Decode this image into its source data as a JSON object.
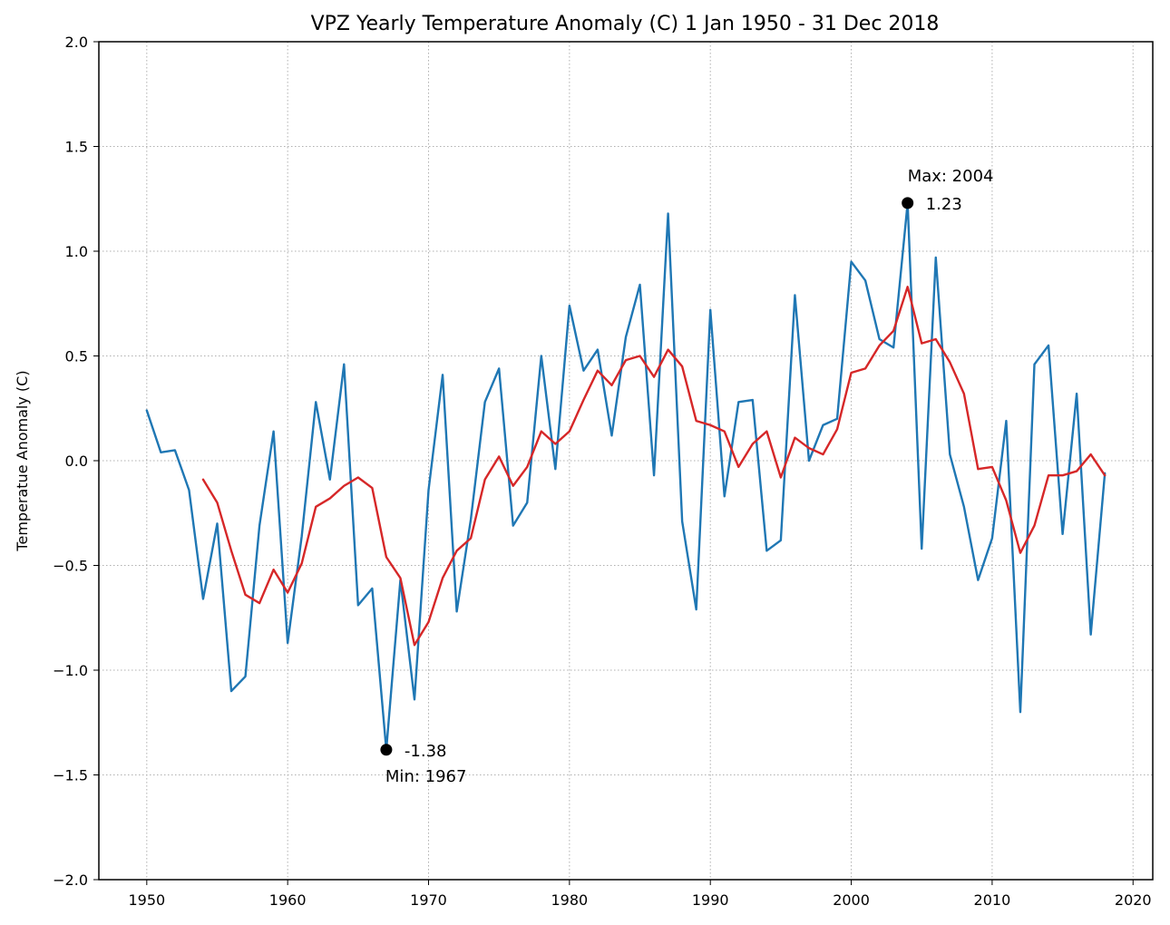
{
  "chart_data": {
    "type": "line",
    "title": "VPZ Yearly Temperature Anomaly (C) 1 Jan 1950 - 31 Dec 2018",
    "xlabel": "",
    "ylabel": "Temperatue Anomaly (C)",
    "xlim": [
      1946.6,
      2021.4
    ],
    "ylim": [
      -2.0,
      2.0
    ],
    "xticks": [
      1950,
      1960,
      1970,
      1980,
      1990,
      2000,
      2010,
      2020
    ],
    "yticks": [
      -2.0,
      -1.5,
      -1.0,
      -0.5,
      0.0,
      0.5,
      1.0,
      1.5,
      2.0
    ],
    "ytick_labels": [
      "−2.0",
      "−1.5",
      "−1.0",
      "−0.5",
      "0.0",
      "0.5",
      "1.0",
      "1.5",
      "2.0"
    ],
    "grid": true,
    "series": [
      {
        "color": "#1f77b4",
        "x": [
          1950,
          1951,
          1952,
          1953,
          1954,
          1955,
          1956,
          1957,
          1958,
          1959,
          1960,
          1961,
          1962,
          1963,
          1964,
          1965,
          1966,
          1967,
          1968,
          1969,
          1970,
          1971,
          1972,
          1973,
          1974,
          1975,
          1976,
          1977,
          1978,
          1979,
          1980,
          1981,
          1982,
          1983,
          1984,
          1985,
          1986,
          1987,
          1988,
          1989,
          1990,
          1991,
          1992,
          1993,
          1994,
          1995,
          1996,
          1997,
          1998,
          1999,
          2000,
          2001,
          2002,
          2003,
          2004,
          2005,
          2006,
          2007,
          2008,
          2009,
          2010,
          2011,
          2012,
          2013,
          2014,
          2015,
          2016,
          2017,
          2018
        ],
        "y": [
          0.24,
          0.04,
          0.05,
          -0.14,
          -0.66,
          -0.3,
          -1.1,
          -1.03,
          -0.31,
          0.14,
          -0.87,
          -0.36,
          0.28,
          -0.09,
          0.46,
          -0.69,
          -0.61,
          -1.38,
          -0.57,
          -1.14,
          -0.14,
          0.41,
          -0.72,
          -0.28,
          0.28,
          0.44,
          -0.31,
          -0.2,
          0.5,
          -0.04,
          0.74,
          0.43,
          0.53,
          0.12,
          0.59,
          0.84,
          -0.07,
          1.18,
          -0.29,
          -0.71,
          0.72,
          -0.17,
          0.28,
          0.29,
          -0.43,
          -0.38,
          0.79,
          0.0,
          0.17,
          0.2,
          0.95,
          0.86,
          0.58,
          0.54,
          1.23,
          -0.42,
          0.97,
          0.03,
          -0.22,
          -0.57,
          -0.37,
          0.19,
          -1.2,
          0.46,
          0.55,
          -0.35,
          0.32,
          -0.83,
          -0.06
        ]
      },
      {
        "color": "#d62728",
        "x": [
          1954,
          1955,
          1956,
          1957,
          1958,
          1959,
          1960,
          1961,
          1962,
          1963,
          1964,
          1965,
          1966,
          1967,
          1968,
          1969,
          1970,
          1971,
          1972,
          1973,
          1974,
          1975,
          1976,
          1977,
          1978,
          1979,
          1980,
          1981,
          1982,
          1983,
          1984,
          1985,
          1986,
          1987,
          1988,
          1989,
          1990,
          1991,
          1992,
          1993,
          1994,
          1995,
          1996,
          1997,
          1998,
          1999,
          2000,
          2001,
          2002,
          2003,
          2004,
          2005,
          2006,
          2007,
          2008,
          2009,
          2010,
          2011,
          2012,
          2013,
          2014,
          2015,
          2016,
          2017,
          2018
        ],
        "y": [
          -0.09,
          -0.2,
          -0.43,
          -0.64,
          -0.68,
          -0.52,
          -0.63,
          -0.49,
          -0.22,
          -0.18,
          -0.12,
          -0.08,
          -0.13,
          -0.46,
          -0.56,
          -0.88,
          -0.77,
          -0.56,
          -0.43,
          -0.37,
          -0.09,
          0.02,
          -0.12,
          -0.03,
          0.14,
          0.08,
          0.14,
          0.29,
          0.43,
          0.36,
          0.48,
          0.5,
          0.4,
          0.53,
          0.45,
          0.19,
          0.17,
          0.14,
          -0.03,
          0.08,
          0.14,
          -0.08,
          0.11,
          0.06,
          0.03,
          0.15,
          0.42,
          0.44,
          0.55,
          0.62,
          0.83,
          0.56,
          0.58,
          0.47,
          0.32,
          -0.04,
          -0.03,
          -0.19,
          -0.44,
          -0.31,
          -0.07,
          -0.07,
          -0.05,
          0.03,
          -0.07
        ]
      }
    ],
    "annotations": [
      {
        "kind": "max",
        "x": 2004,
        "y": 1.23,
        "label": "Max: 2004",
        "value_label": "1.23"
      },
      {
        "kind": "min",
        "x": 1967,
        "y": -1.38,
        "label": "Min: 1967",
        "value_label": "-1.38"
      }
    ]
  }
}
